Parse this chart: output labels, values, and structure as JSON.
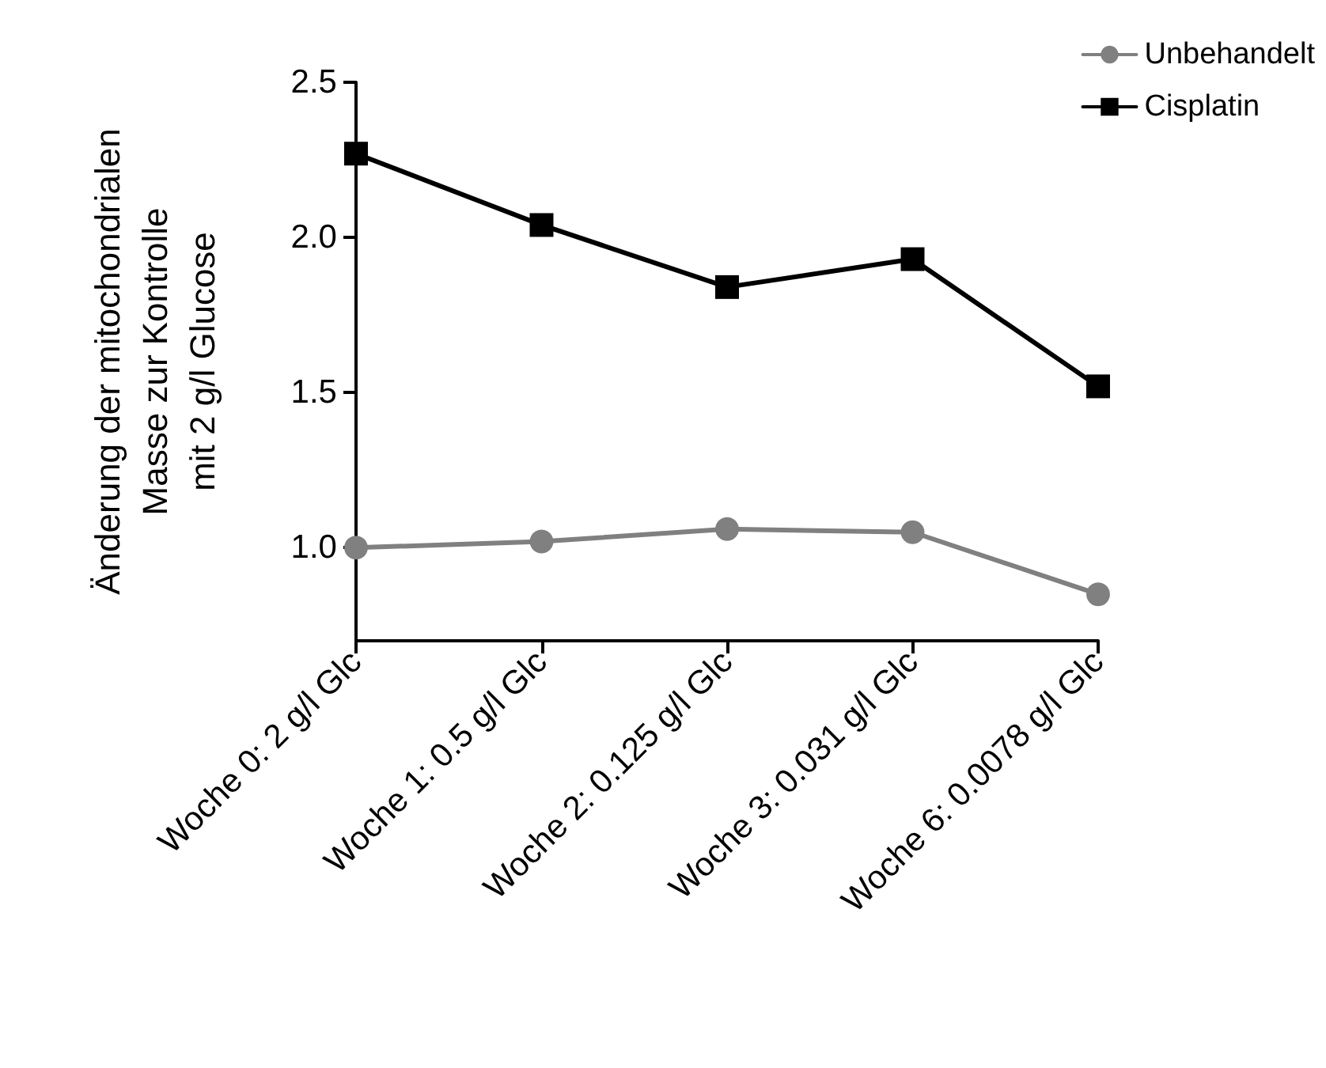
{
  "chart_data": {
    "type": "line",
    "ylabel": "Änderung der mitochondrialen\nMasse zur Kontrolle\nmit 2 g/l Glucose",
    "categories": [
      "Woche 0: 2 g/l Glc",
      "Woche 1: 0.5 g/l Glc",
      "Woche 2: 0.125 g/l Glc",
      "Woche 3: 0.031 g/l Glc",
      "Woche 6: 0.0078 g/l Glc"
    ],
    "ylim": [
      0.7,
      2.5
    ],
    "yticks": [
      {
        "value": 1,
        "label": "1.0"
      },
      {
        "value": 1.5,
        "label": "1.5"
      },
      {
        "value": 2,
        "label": "2.0"
      },
      {
        "value": 2.5,
        "label": "2.5"
      }
    ],
    "series": [
      {
        "name": "Unbehandelt",
        "color": "#808080",
        "marker": "circle",
        "values": [
          1.0,
          1.02,
          1.06,
          1.05,
          0.85
        ]
      },
      {
        "name": "Cisplatin",
        "color": "#000000",
        "marker": "square",
        "values": [
          2.27,
          2.04,
          1.84,
          1.93,
          1.52
        ]
      }
    ],
    "legend": "top right",
    "grid": false,
    "line_style": "solid"
  }
}
